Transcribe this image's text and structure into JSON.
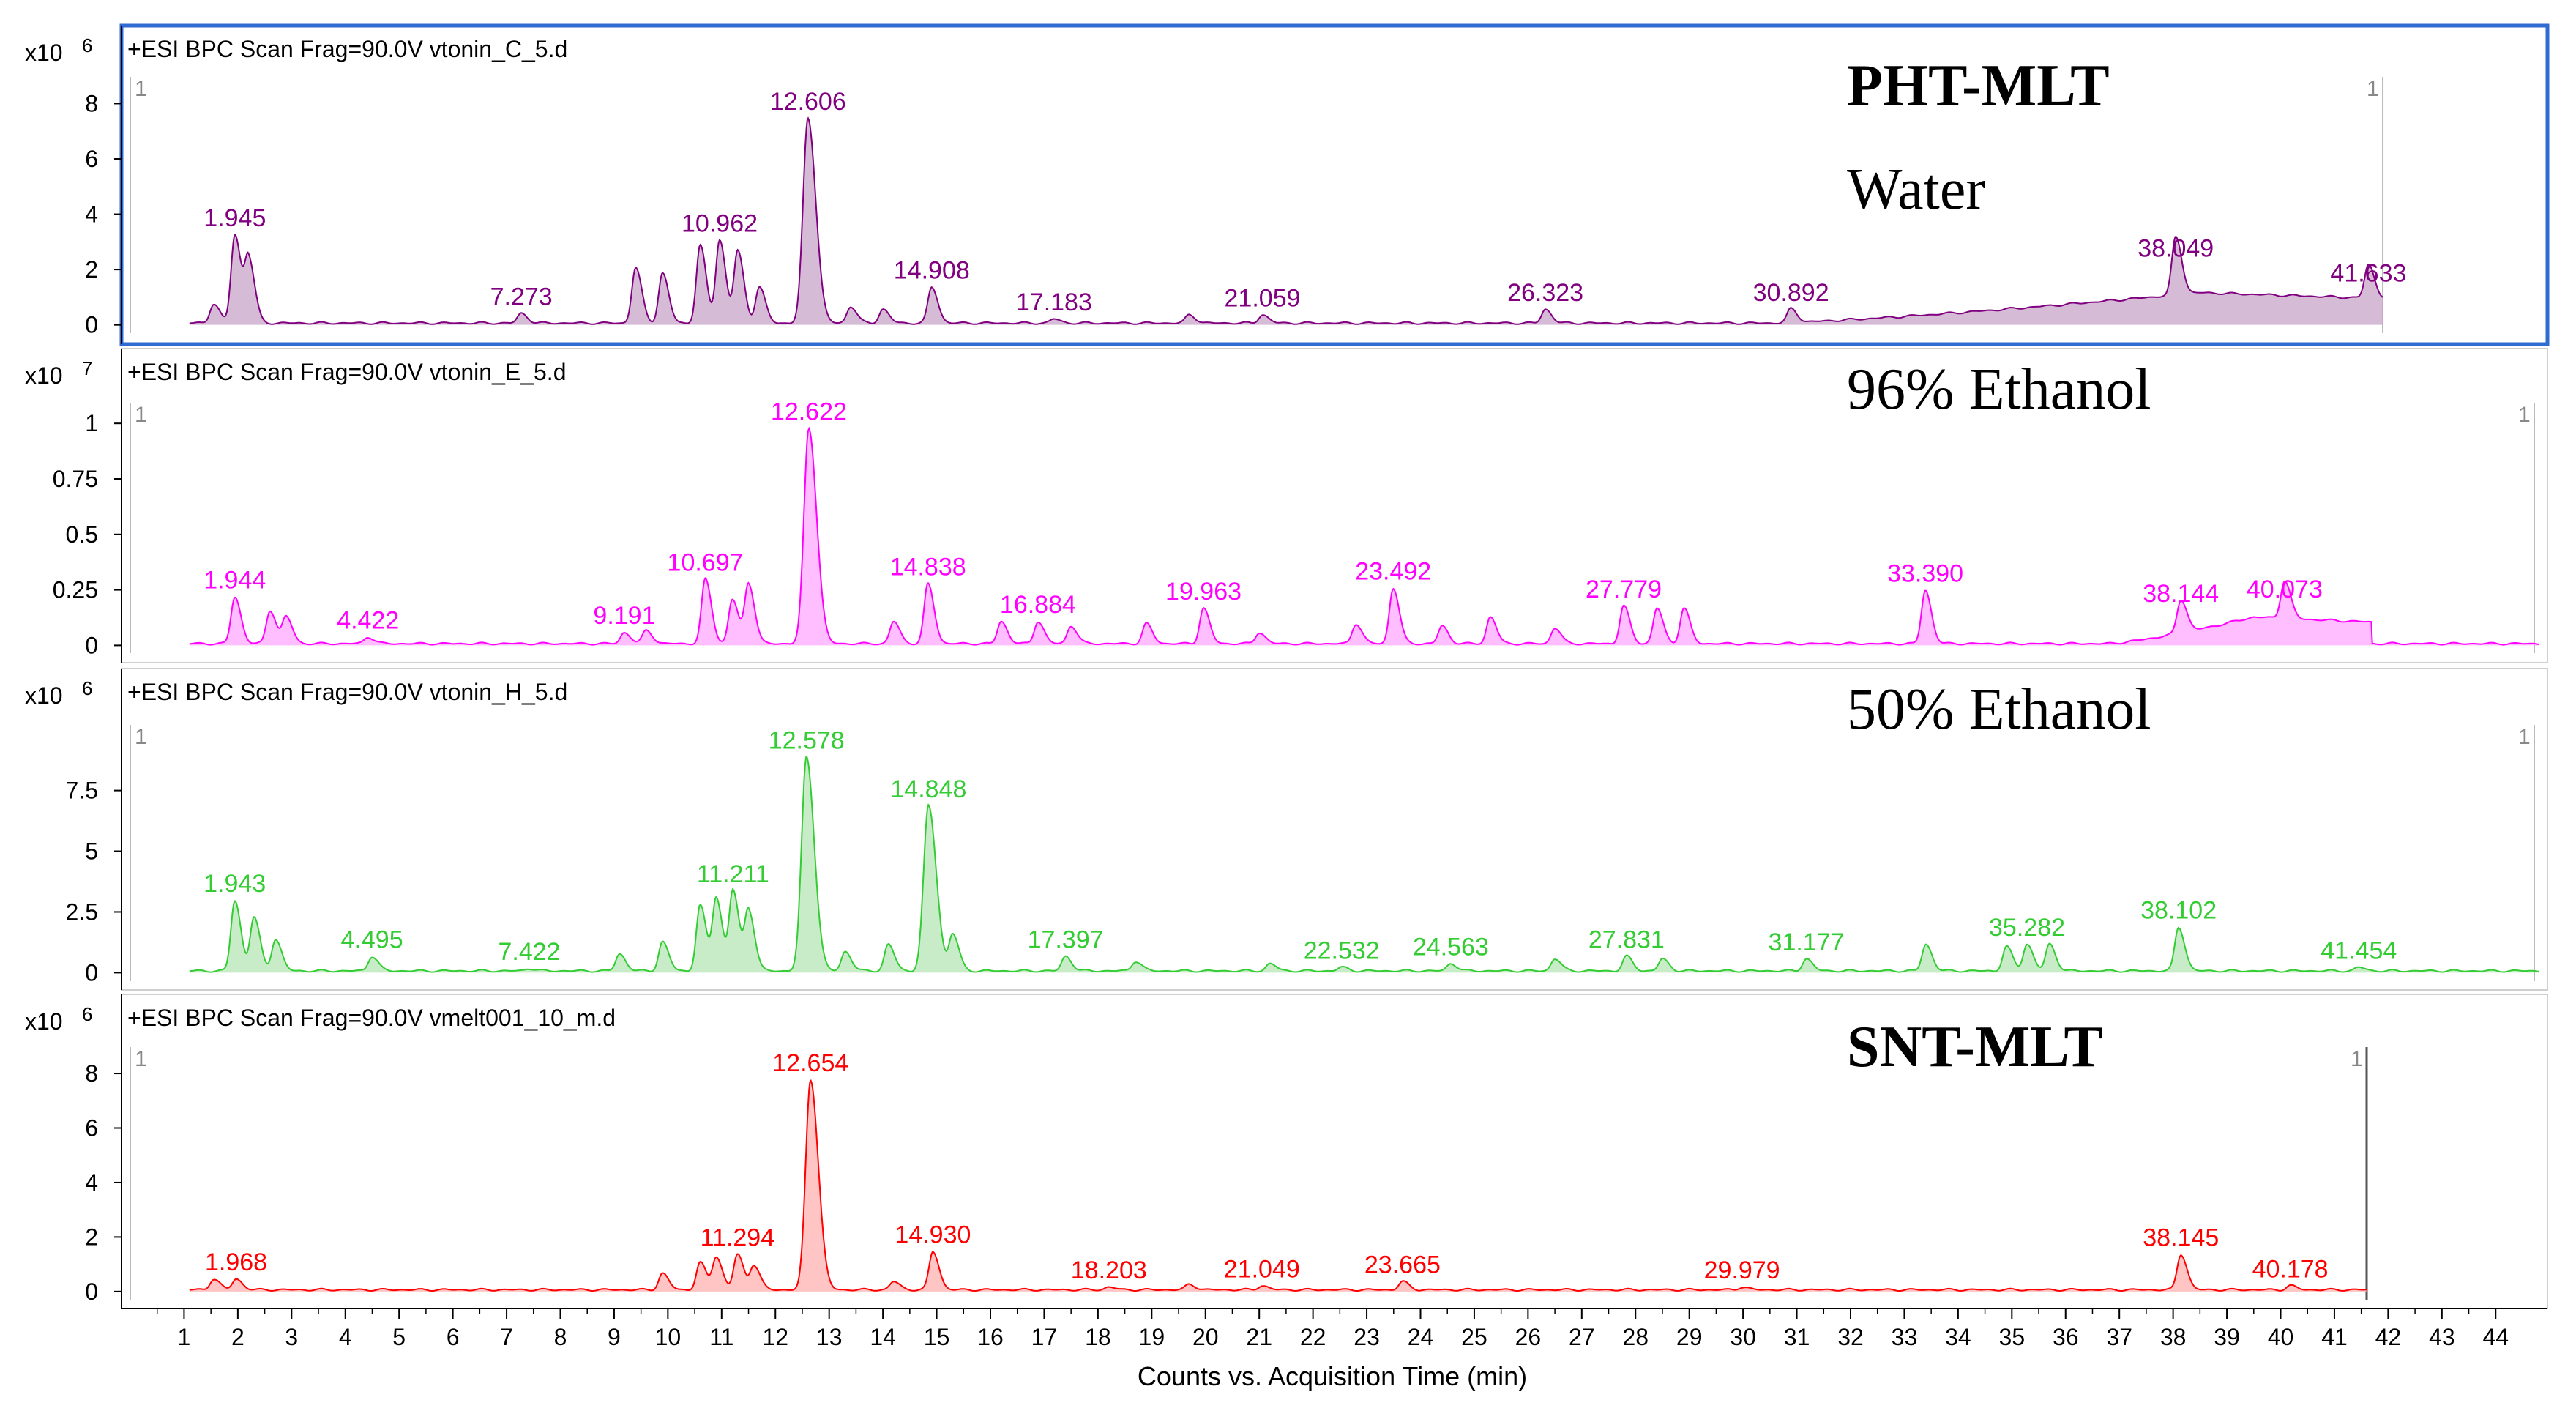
{
  "chart_data": {
    "type": "line",
    "x_label": "Counts vs. Acquisition Time (min)",
    "x_ticks": [
      1,
      2,
      3,
      4,
      5,
      6,
      7,
      8,
      9,
      10,
      11,
      12,
      13,
      14,
      15,
      16,
      17,
      18,
      19,
      20,
      21,
      22,
      23,
      24,
      25,
      26,
      27,
      28,
      29,
      30,
      31,
      32,
      33,
      34,
      35,
      36,
      37,
      38,
      39,
      40,
      41,
      42,
      43,
      44
    ],
    "xlim": [
      0,
      44.8
    ],
    "panels": [
      {
        "id": "water",
        "title": "+ESI BPC Scan Frag=90.0V vtonin_C_5.d",
        "scale_base": "x10",
        "scale_exp": "6",
        "side_marker": "1",
        "color": "#800080",
        "fill": "#c8a4c8",
        "y_ticks": [
          "0",
          "2",
          "4",
          "6",
          "8"
        ],
        "y_tick_values": [
          0,
          2,
          4,
          6,
          8
        ],
        "ylim": [
          -0.3,
          8.7
        ],
        "group_label": "PHT-MLT",
        "solvent_label": "Water",
        "highlighted": true,
        "peaks": [
          {
            "x": 1.945,
            "y": 3.2,
            "label": "1.945"
          },
          {
            "x": 2.2,
            "y": 2.3
          },
          {
            "x": 1.55,
            "y": 0.7
          },
          {
            "x": 7.273,
            "y": 0.35,
            "label": "7.273"
          },
          {
            "x": 9.4,
            "y": 2.0
          },
          {
            "x": 9.9,
            "y": 1.8
          },
          {
            "x": 10.6,
            "y": 2.8
          },
          {
            "x": 10.962,
            "y": 3.0,
            "label": "10.962"
          },
          {
            "x": 11.3,
            "y": 2.6
          },
          {
            "x": 11.7,
            "y": 1.3
          },
          {
            "x": 12.606,
            "y": 7.4,
            "label": "12.606"
          },
          {
            "x": 13.4,
            "y": 0.6
          },
          {
            "x": 14.0,
            "y": 0.5
          },
          {
            "x": 14.908,
            "y": 1.3,
            "label": "14.908"
          },
          {
            "x": 17.183,
            "y": 0.15,
            "label": "17.183"
          },
          {
            "x": 19.7,
            "y": 0.3
          },
          {
            "x": 21.059,
            "y": 0.3,
            "label": "21.059"
          },
          {
            "x": 26.323,
            "y": 0.5,
            "label": "26.323"
          },
          {
            "x": 30.892,
            "y": 0.5,
            "label": "30.892"
          },
          {
            "x": 38.049,
            "y": 2.1,
            "label": "38.049"
          },
          {
            "x": 41.633,
            "y": 1.2,
            "label": "41.633"
          }
        ],
        "hump": {
          "start": 30.5,
          "peak": 38.5,
          "end": 41.9,
          "height": 1.1
        },
        "end_x": 41.9
      },
      {
        "id": "ethanol96",
        "title": "+ESI BPC Scan Frag=90.0V vtonin_E_5.d",
        "scale_base": "x10",
        "scale_exp": "7",
        "side_marker": "1",
        "color": "#ff00ff",
        "fill": "#ffa8ff",
        "y_ticks": [
          "0",
          "0.25",
          "0.5",
          "0.75",
          "1"
        ],
        "y_tick_values": [
          0,
          0.25,
          0.5,
          0.75,
          1
        ],
        "ylim": [
          -0.035,
          1.06
        ],
        "group_label": "",
        "solvent_label": "96% Ethanol",
        "highlighted": false,
        "peaks": [
          {
            "x": 1.944,
            "y": 0.21,
            "label": "1.944"
          },
          {
            "x": 2.6,
            "y": 0.15
          },
          {
            "x": 2.9,
            "y": 0.12
          },
          {
            "x": 4.422,
            "y": 0.03,
            "label": "4.422"
          },
          {
            "x": 9.191,
            "y": 0.05,
            "label": "9.191"
          },
          {
            "x": 9.6,
            "y": 0.06
          },
          {
            "x": 10.697,
            "y": 0.29,
            "label": "10.697"
          },
          {
            "x": 11.2,
            "y": 0.2
          },
          {
            "x": 11.5,
            "y": 0.27
          },
          {
            "x": 12.622,
            "y": 0.97,
            "label": "12.622"
          },
          {
            "x": 14.2,
            "y": 0.1
          },
          {
            "x": 14.838,
            "y": 0.27,
            "label": "14.838"
          },
          {
            "x": 16.2,
            "y": 0.1
          },
          {
            "x": 16.884,
            "y": 0.1,
            "label": "16.884"
          },
          {
            "x": 17.5,
            "y": 0.08
          },
          {
            "x": 18.9,
            "y": 0.09
          },
          {
            "x": 19.963,
            "y": 0.16,
            "label": "19.963"
          },
          {
            "x": 21.0,
            "y": 0.05
          },
          {
            "x": 22.8,
            "y": 0.09
          },
          {
            "x": 23.492,
            "y": 0.25,
            "label": "23.492"
          },
          {
            "x": 24.4,
            "y": 0.08
          },
          {
            "x": 25.3,
            "y": 0.12
          },
          {
            "x": 26.5,
            "y": 0.07
          },
          {
            "x": 27.779,
            "y": 0.17,
            "label": "27.779"
          },
          {
            "x": 28.4,
            "y": 0.16
          },
          {
            "x": 28.9,
            "y": 0.16
          },
          {
            "x": 33.39,
            "y": 0.24,
            "label": "33.390"
          },
          {
            "x": 38.144,
            "y": 0.15,
            "label": "38.144"
          },
          {
            "x": 40.073,
            "y": 0.17,
            "label": "40.073"
          }
        ],
        "hump": {
          "start": 36.8,
          "peak": 39.5,
          "end": 41.7,
          "height": 0.12
        },
        "end_x": 44.8
      },
      {
        "id": "ethanol50",
        "title": "+ESI BPC Scan Frag=90.0V vtonin_H_5.d",
        "scale_base": "x10",
        "scale_exp": "6",
        "side_marker": "1",
        "color": "#33cc33",
        "fill": "#b6e6b6",
        "y_ticks": [
          "0",
          "2.5",
          "5",
          "7.5"
        ],
        "y_tick_values": [
          0,
          2.5,
          5,
          7.5
        ],
        "ylim": [
          -0.35,
          9.9
        ],
        "group_label": "",
        "solvent_label": "50% Ethanol",
        "highlighted": false,
        "peaks": [
          {
            "x": 1.943,
            "y": 2.9,
            "label": "1.943"
          },
          {
            "x": 2.3,
            "y": 2.2
          },
          {
            "x": 2.7,
            "y": 1.3
          },
          {
            "x": 4.495,
            "y": 0.6,
            "label": "4.495"
          },
          {
            "x": 7.422,
            "y": 0.1,
            "label": "7.422"
          },
          {
            "x": 9.1,
            "y": 0.7
          },
          {
            "x": 9.9,
            "y": 1.2
          },
          {
            "x": 10.6,
            "y": 2.7
          },
          {
            "x": 10.9,
            "y": 3.0
          },
          {
            "x": 11.211,
            "y": 3.3,
            "label": "11.211"
          },
          {
            "x": 11.5,
            "y": 2.5
          },
          {
            "x": 12.578,
            "y": 8.8,
            "label": "12.578"
          },
          {
            "x": 13.3,
            "y": 0.8
          },
          {
            "x": 14.1,
            "y": 1.1
          },
          {
            "x": 14.848,
            "y": 6.8,
            "label": "14.848"
          },
          {
            "x": 15.3,
            "y": 1.5
          },
          {
            "x": 17.397,
            "y": 0.6,
            "label": "17.397"
          },
          {
            "x": 18.7,
            "y": 0.4
          },
          {
            "x": 21.2,
            "y": 0.3
          },
          {
            "x": 22.532,
            "y": 0.15,
            "label": "22.532"
          },
          {
            "x": 24.563,
            "y": 0.3,
            "label": "24.563"
          },
          {
            "x": 26.5,
            "y": 0.5
          },
          {
            "x": 27.831,
            "y": 0.6,
            "label": "27.831"
          },
          {
            "x": 28.5,
            "y": 0.5
          },
          {
            "x": 31.177,
            "y": 0.5,
            "label": "31.177"
          },
          {
            "x": 33.4,
            "y": 1.1
          },
          {
            "x": 34.9,
            "y": 1.0
          },
          {
            "x": 35.282,
            "y": 1.1,
            "label": "35.282"
          },
          {
            "x": 35.7,
            "y": 1.1
          },
          {
            "x": 38.102,
            "y": 1.8,
            "label": "38.102"
          },
          {
            "x": 41.454,
            "y": 0.15,
            "label": "41.454"
          }
        ],
        "hump": null,
        "end_x": 44.8
      },
      {
        "id": "snt",
        "title": "+ESI BPC Scan Frag=90.0V vmelt001_10_m.d",
        "scale_base": "x10",
        "scale_exp": "6",
        "side_marker": "1",
        "color": "#ff0000",
        "fill": "#ffb0b0",
        "y_ticks": [
          "0",
          "2",
          "4",
          "6",
          "8"
        ],
        "y_tick_values": [
          0,
          2,
          4,
          6,
          8
        ],
        "ylim": [
          -0.3,
          8.7
        ],
        "group_label": "SNT-MLT",
        "solvent_label": "",
        "highlighted": false,
        "peaks": [
          {
            "x": 1.968,
            "y": 0.4,
            "label": "1.968"
          },
          {
            "x": 1.55,
            "y": 0.4
          },
          {
            "x": 9.9,
            "y": 0.6
          },
          {
            "x": 10.6,
            "y": 1.0
          },
          {
            "x": 10.9,
            "y": 1.2
          },
          {
            "x": 11.294,
            "y": 1.3,
            "label": "11.294"
          },
          {
            "x": 11.6,
            "y": 0.9
          },
          {
            "x": 12.654,
            "y": 7.7,
            "label": "12.654"
          },
          {
            "x": 14.2,
            "y": 0.3
          },
          {
            "x": 14.93,
            "y": 1.4,
            "label": "14.930"
          },
          {
            "x": 18.203,
            "y": 0.1,
            "label": "18.203"
          },
          {
            "x": 19.7,
            "y": 0.2
          },
          {
            "x": 21.049,
            "y": 0.15,
            "label": "21.049"
          },
          {
            "x": 23.665,
            "y": 0.3,
            "label": "23.665"
          },
          {
            "x": 29.979,
            "y": 0.1,
            "label": "29.979"
          },
          {
            "x": 38.145,
            "y": 1.3,
            "label": "38.145"
          },
          {
            "x": 40.178,
            "y": 0.15,
            "label": "40.178"
          }
        ],
        "hump": null,
        "end_x": 41.6
      }
    ]
  }
}
